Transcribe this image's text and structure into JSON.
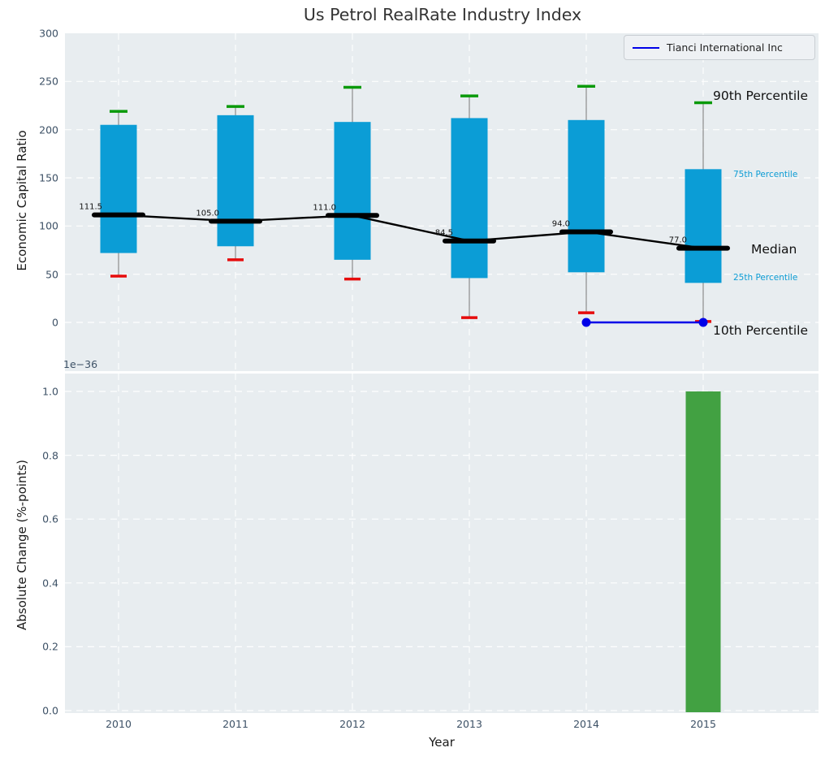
{
  "colors": {
    "box_fill": "#0b9dd6",
    "percentile_90_cap": "#0a9a0a",
    "percentile_10_cap": "#e60c0c",
    "median_line": "#000000",
    "whisker": "#8c8c8c",
    "company_line": "#0000e8",
    "bar_green": "#42a142",
    "axes_background": "#e8edf0",
    "grid": "#ffffff",
    "tick_label": "#3d5166",
    "annotation_accent": "#0d9dd5"
  },
  "chart_data": [
    {
      "type": "box",
      "title": "Us Petrol RealRate Industry Index",
      "ylabel": "Economic Capital Ratio",
      "ylim": [
        -50,
        300
      ],
      "yticks": [
        0,
        50,
        100,
        150,
        200,
        250,
        300
      ],
      "grid": true,
      "years": [
        2010,
        2011,
        2012,
        2013,
        2014,
        2015
      ],
      "boxes": [
        {
          "year": 2010,
          "p10": 48,
          "p25": 72,
          "median": 111.5,
          "p75": 205,
          "p90": 219,
          "median_label": "111.5"
        },
        {
          "year": 2011,
          "p10": 65,
          "p25": 79,
          "median": 105.0,
          "p75": 215,
          "p90": 224,
          "median_label": "105.0"
        },
        {
          "year": 2012,
          "p10": 45,
          "p25": 65,
          "median": 111.0,
          "p75": 208,
          "p90": 244,
          "median_label": "111.0"
        },
        {
          "year": 2013,
          "p10": 5,
          "p25": 46,
          "median": 84.5,
          "p75": 212,
          "p90": 235,
          "median_label": "84.5"
        },
        {
          "year": 2014,
          "p10": 10,
          "p25": 52,
          "median": 94.0,
          "p75": 210,
          "p90": 245,
          "median_label": "94.0"
        },
        {
          "year": 2015,
          "p10": 1,
          "p25": 41,
          "median": 77.0,
          "p75": 159,
          "p90": 228,
          "median_label": "77.0"
        }
      ],
      "series": [
        {
          "name": "Tianci International Inc",
          "points": [
            {
              "year": 2014,
              "value": 0
            },
            {
              "year": 2015,
              "value": 0
            }
          ]
        }
      ],
      "legend": {
        "position": "upper right",
        "entries": [
          {
            "label": "Tianci International Inc"
          }
        ]
      },
      "annotations": [
        {
          "text": "90th Percentile",
          "level": 228,
          "emphasis": "large"
        },
        {
          "text": "75th Percentile",
          "level": 159,
          "emphasis": "small"
        },
        {
          "text": "Median",
          "level": 77,
          "emphasis": "large"
        },
        {
          "text": "25th Percentile",
          "level": 41,
          "emphasis": "small"
        },
        {
          "text": "10th Percentile",
          "level": 1,
          "emphasis": "large"
        }
      ]
    },
    {
      "type": "bar",
      "ylabel": "Absolute Change (%-points)",
      "xlabel": "Year",
      "offset_text": "1e−36",
      "ylim": [
        0,
        1.05
      ],
      "yticks": [
        "0.0",
        "0.2",
        "0.4",
        "0.6",
        "0.8",
        "1.0"
      ],
      "grid": true,
      "years": [
        2010,
        2011,
        2012,
        2013,
        2014,
        2015
      ],
      "bars": [
        {
          "year": 2015,
          "value": 1e-36,
          "display_value": 1.0
        }
      ]
    }
  ]
}
